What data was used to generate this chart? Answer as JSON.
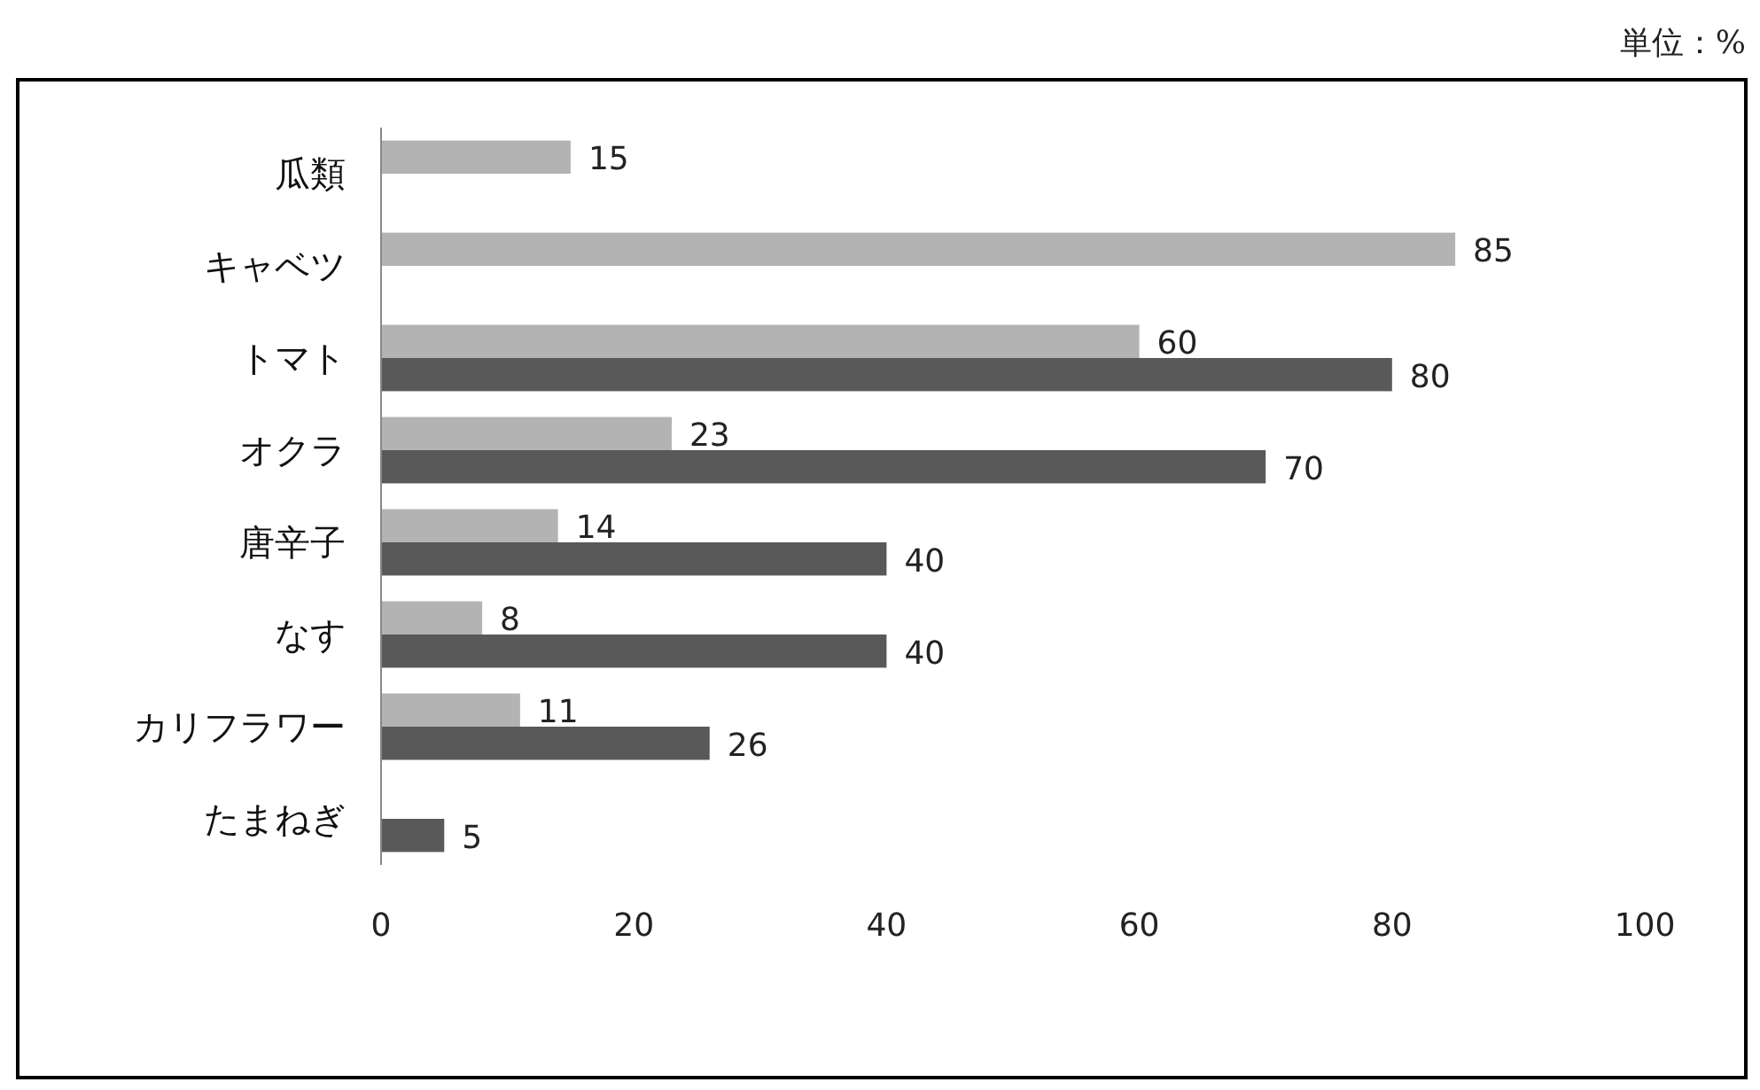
{
  "chart_data": {
    "type": "bar",
    "orientation": "horizontal",
    "categories": [
      "瓜類",
      "キャベツ",
      "トマト",
      "オクラ",
      "唐辛子",
      "なす",
      "カリフラワー",
      "たまねぎ"
    ],
    "series": [
      {
        "color": "#b3b3b3",
        "values": [
          15,
          85,
          60,
          23,
          14,
          8,
          11,
          null
        ]
      },
      {
        "color": "#595959",
        "values": [
          null,
          null,
          80,
          70,
          40,
          40,
          26,
          5
        ]
      }
    ],
    "xlim": [
      0,
      100
    ],
    "xticks": [
      0,
      20,
      40,
      60,
      80,
      100
    ],
    "data_labels": true,
    "grid": false,
    "annotations": [
      "単位：%"
    ]
  }
}
